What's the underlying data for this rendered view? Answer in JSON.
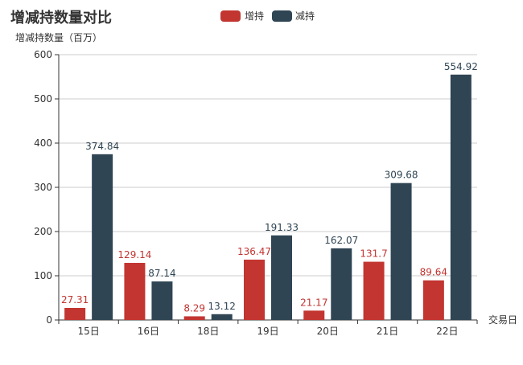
{
  "chart_data": {
    "type": "bar",
    "title": "增减持数量对比",
    "ylabel": "增减持数量（百万）",
    "xlabel": "交易日",
    "categories": [
      "15日",
      "16日",
      "18日",
      "19日",
      "20日",
      "21日",
      "22日"
    ],
    "series": [
      {
        "name": "增持",
        "color": "#c23531",
        "values": [
          27.31,
          129.14,
          8.29,
          136.47,
          21.17,
          131.7,
          89.64
        ]
      },
      {
        "name": "减持",
        "color": "#2f4554",
        "values": [
          374.84,
          87.14,
          13.12,
          191.33,
          162.07,
          309.68,
          554.92
        ]
      }
    ],
    "ylim": [
      0,
      600
    ],
    "yticks": [
      0,
      100,
      200,
      300,
      400,
      500,
      600
    ],
    "grid": true,
    "legend_position": "top-center"
  }
}
